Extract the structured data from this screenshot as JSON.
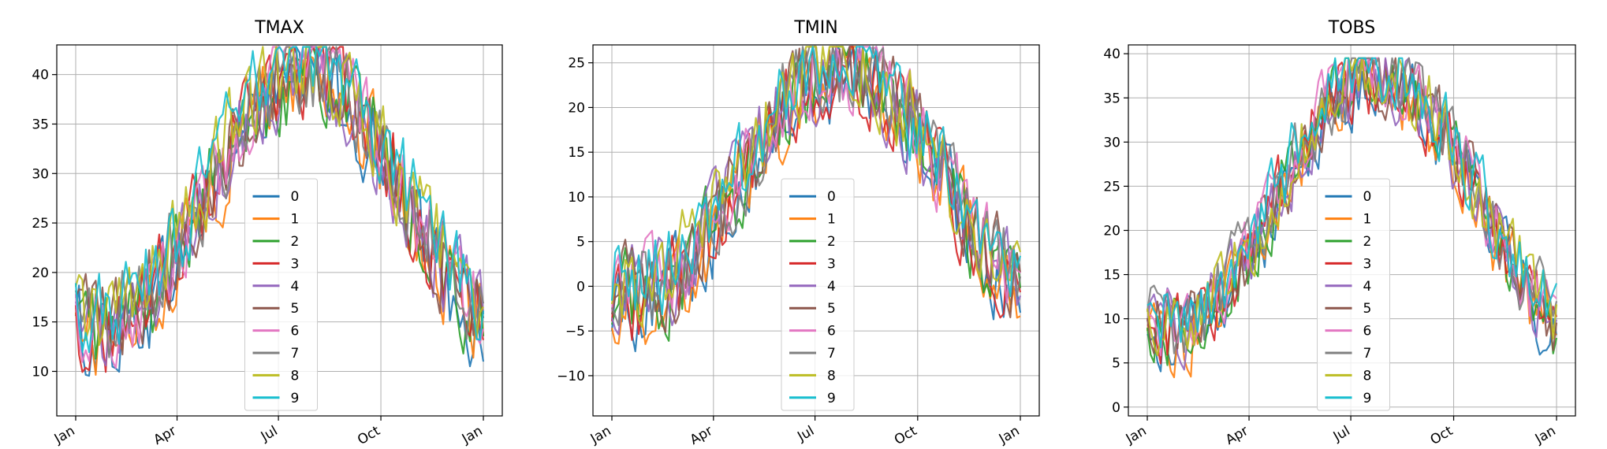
{
  "chart_data": [
    {
      "type": "line",
      "title": "TMAX",
      "x_domain": [
        "2000-01-01",
        "2001-01-01"
      ],
      "x_ticks": [
        {
          "date": "2000-01-01",
          "label": "Jan"
        },
        {
          "date": "2000-04-01",
          "label": "Apr"
        },
        {
          "date": "2000-07-01",
          "label": "Jul"
        },
        {
          "date": "2000-10-01",
          "label": "Oct"
        },
        {
          "date": "2001-01-01",
          "label": "Jan"
        }
      ],
      "ylim": [
        5.5,
        43
      ],
      "y_ticks": [
        10,
        15,
        20,
        25,
        30,
        35,
        40
      ],
      "grid": true,
      "legend_placement": "lower-center",
      "series_profile": {
        "low": 14.6,
        "high": 40.4,
        "peak_date": "2000-07-25",
        "noise": 6.5,
        "clip": [
          7.2,
          42.8
        ],
        "days_step": 3
      },
      "series": [
        {
          "name": "0"
        },
        {
          "name": "1"
        },
        {
          "name": "2"
        },
        {
          "name": "3"
        },
        {
          "name": "4"
        },
        {
          "name": "5"
        },
        {
          "name": "6"
        },
        {
          "name": "7"
        },
        {
          "name": "8"
        },
        {
          "name": "9"
        }
      ]
    },
    {
      "type": "line",
      "title": "TMIN",
      "x_domain": [
        "2000-01-01",
        "2001-01-01"
      ],
      "x_ticks": [
        {
          "date": "2000-01-01",
          "label": "Jan"
        },
        {
          "date": "2000-04-01",
          "label": "Apr"
        },
        {
          "date": "2000-07-01",
          "label": "Jul"
        },
        {
          "date": "2000-10-01",
          "label": "Oct"
        },
        {
          "date": "2001-01-01",
          "label": "Jan"
        }
      ],
      "ylim": [
        -14.5,
        27
      ],
      "y_ticks": [
        -10,
        -5,
        0,
        5,
        10,
        15,
        20,
        25
      ],
      "grid": true,
      "legend_placement": "lower-center",
      "series_profile": {
        "low": -0.5,
        "high": 24.5,
        "peak_date": "2000-07-25",
        "noise": 7.0,
        "clip": [
          -12.8,
          26.8
        ],
        "days_step": 3
      },
      "series": [
        {
          "name": "0"
        },
        {
          "name": "1"
        },
        {
          "name": "2"
        },
        {
          "name": "3"
        },
        {
          "name": "4"
        },
        {
          "name": "5"
        },
        {
          "name": "6"
        },
        {
          "name": "7"
        },
        {
          "name": "8"
        },
        {
          "name": "9"
        }
      ]
    },
    {
      "type": "line",
      "title": "TOBS",
      "x_domain": [
        "2000-01-01",
        "2001-01-01"
      ],
      "x_ticks": [
        {
          "date": "2000-01-01",
          "label": "Jan"
        },
        {
          "date": "2000-04-01",
          "label": "Apr"
        },
        {
          "date": "2000-07-01",
          "label": "Jul"
        },
        {
          "date": "2000-10-01",
          "label": "Oct"
        },
        {
          "date": "2001-01-01",
          "label": "Jan"
        }
      ],
      "ylim": [
        -1,
        41
      ],
      "y_ticks": [
        0,
        5,
        10,
        15,
        20,
        25,
        30,
        35,
        40
      ],
      "grid": true,
      "legend_placement": "lower-center",
      "series_profile": {
        "low": 9.0,
        "high": 37.5,
        "peak_date": "2000-07-25",
        "noise": 6.0,
        "clip": [
          1.2,
          39.5
        ],
        "days_step": 3
      },
      "series": [
        {
          "name": "0"
        },
        {
          "name": "1"
        },
        {
          "name": "2"
        },
        {
          "name": "3"
        },
        {
          "name": "4"
        },
        {
          "name": "5"
        },
        {
          "name": "6"
        },
        {
          "name": "7"
        },
        {
          "name": "8"
        },
        {
          "name": "9"
        }
      ]
    }
  ],
  "colors": [
    "#1f77b4",
    "#ff7f0e",
    "#2ca02c",
    "#d62728",
    "#9467bd",
    "#8c564b",
    "#e377c2",
    "#7f7f7f",
    "#bcbd22",
    "#17becf"
  ]
}
